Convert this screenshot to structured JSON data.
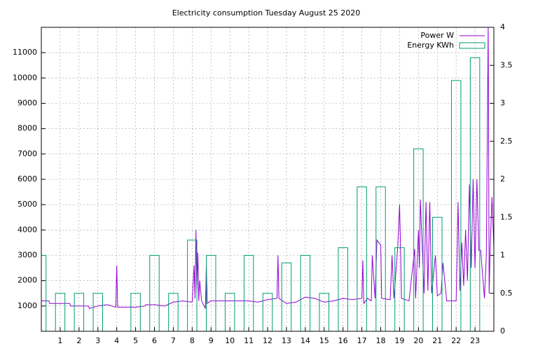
{
  "chart_data": {
    "type": "line+boxes",
    "title": "Electricity consumption Tuesday August 25 2020",
    "xlim": [
      0,
      24
    ],
    "xticks": [
      1,
      2,
      3,
      4,
      5,
      6,
      7,
      8,
      9,
      10,
      11,
      12,
      13,
      14,
      15,
      16,
      17,
      18,
      19,
      20,
      21,
      22,
      23
    ],
    "ylim": [
      0,
      12000
    ],
    "yticks": [
      1000,
      2000,
      3000,
      4000,
      5000,
      6000,
      7000,
      8000,
      9000,
      10000,
      11000
    ],
    "y2lim": [
      0,
      4
    ],
    "y2ticks": [
      0,
      0.5,
      1,
      1.5,
      2,
      2.5,
      3,
      3.5,
      4
    ],
    "grid": true,
    "legend": "top-right",
    "series": [
      {
        "name": "Power W",
        "color": "#9400d3",
        "type": "line",
        "x": [
          0,
          0.4,
          0.45,
          1,
          1.5,
          1.55,
          2,
          2.5,
          2.55,
          3,
          3.5,
          3.95,
          4,
          4.05,
          4.5,
          5,
          5.5,
          5.55,
          6,
          6.5,
          6.55,
          7,
          7.5,
          8,
          8.1,
          8.15,
          8.2,
          8.25,
          8.3,
          8.35,
          8.4,
          8.5,
          8.7,
          8.75,
          8.8,
          9,
          10,
          11,
          11.5,
          12,
          12.5,
          12.55,
          12.6,
          13,
          13.5,
          14,
          14.5,
          15,
          15.5,
          16,
          16.5,
          17,
          17.05,
          17.1,
          17.3,
          17.5,
          17.55,
          17.7,
          17.8,
          18,
          18.05,
          18.5,
          18.6,
          18.7,
          18.9,
          19,
          19.05,
          19.1,
          19.5,
          19.8,
          19.85,
          20,
          20.05,
          20.1,
          20.3,
          20.4,
          20.5,
          20.6,
          20.7,
          20.9,
          21,
          21.2,
          21.3,
          21.5,
          21.6,
          22,
          22.05,
          22.1,
          22.2,
          22.3,
          22.4,
          22.5,
          22.6,
          22.7,
          22.8,
          22.9,
          23,
          23.1,
          23.2,
          23.3,
          23.5,
          23.6,
          23.7,
          23.75,
          23.8,
          23.9,
          24
        ],
        "values": [
          1200,
          1200,
          1100,
          1100,
          1100,
          1000,
          1000,
          1000,
          900,
          1000,
          1050,
          950,
          2600,
          950,
          950,
          950,
          1000,
          1050,
          1050,
          1000,
          1000,
          1150,
          1200,
          1150,
          2600,
          1300,
          4000,
          1500,
          3100,
          1200,
          2000,
          1200,
          900,
          2600,
          1100,
          1200,
          1200,
          1200,
          1150,
          1250,
          1300,
          3000,
          1300,
          1100,
          1150,
          1350,
          1300,
          1150,
          1200,
          1300,
          1250,
          1300,
          2800,
          1100,
          1300,
          1200,
          3000,
          1300,
          3600,
          3400,
          1300,
          1250,
          3000,
          1300,
          3300,
          5000,
          3300,
          1300,
          1200,
          3250,
          1300,
          4000,
          2500,
          5200,
          1500,
          5100,
          1600,
          5100,
          1500,
          3000,
          1400,
          1500,
          2700,
          1200,
          1200,
          1200,
          3000,
          5100,
          1600,
          3500,
          1800,
          4000,
          2000,
          5800,
          2500,
          6000,
          2500,
          6000,
          3200,
          3200,
          1300,
          3000,
          12000,
          1500,
          3200,
          5300,
          3300
        ]
      },
      {
        "name": "Energy KWh",
        "color": "#009e73",
        "type": "boxes",
        "axis": "y2",
        "x": [
          0,
          1,
          2,
          3,
          4,
          5,
          6,
          7,
          8,
          9,
          10,
          11,
          12,
          13,
          14,
          15,
          16,
          17,
          18,
          19,
          20,
          21,
          22,
          23
        ],
        "values": [
          1,
          0.5,
          0.5,
          0.5,
          0,
          0.5,
          1,
          0.5,
          1.2,
          1,
          0.5,
          1,
          0.5,
          0.9,
          1,
          0.5,
          1.1,
          1.9,
          1.9,
          1.1,
          2.4,
          1.5,
          3.3,
          3.6
        ]
      }
    ]
  }
}
